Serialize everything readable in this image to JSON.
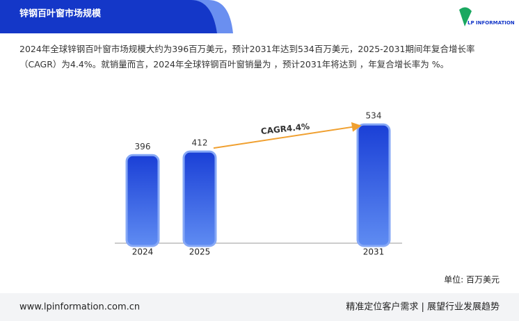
{
  "logo": "LP INFORMATION",
  "footer": {
    "website": "www.lpinformation.com.cn",
    "slogan": "精准定位客户需求 | 展望行业发展趋势"
  },
  "chart_data": {
    "type": "bar",
    "title": "锌钢百叶窗市场规模",
    "description": "2024年全球锌钢百叶窗市场规模大约为396百万美元，预计2031年达到534百万美元，2025-2031期间年复合增长率（CAGR）为4.4%。就销量而言，2024年全球锌钢百叶窗销量为 ，预计2031年将达到 ，年复合增长率为 %。",
    "categories": [
      "2024",
      "2025",
      "2031"
    ],
    "values": [
      396,
      412,
      534
    ],
    "color": "#1f4fe0",
    "annotation": "CAGR4.4%",
    "unit_label": "单位: 百万美元"
  }
}
